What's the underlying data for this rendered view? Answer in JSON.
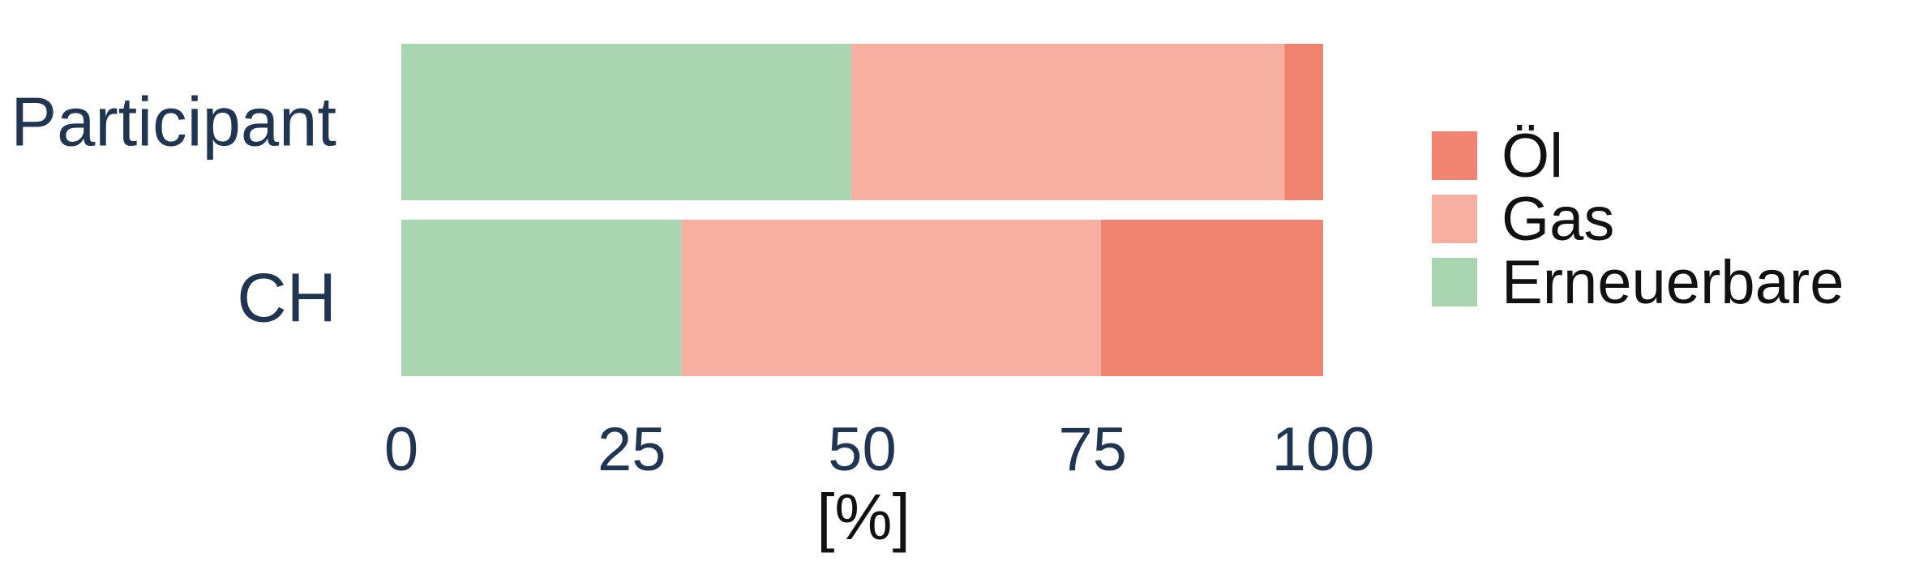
{
  "chart_data": {
    "type": "bar",
    "orientation": "horizontal",
    "stacked": true,
    "categories": [
      "Participant",
      "CH"
    ],
    "series": [
      {
        "name": "Erneuerbare",
        "color": "#a9d5b0",
        "values": [
          48.8,
          30.4
        ]
      },
      {
        "name": "Gas",
        "color": "#f6afa0",
        "values": [
          47.0,
          45.5
        ]
      },
      {
        "name": "Öl",
        "color": "#f08470",
        "values": [
          4.2,
          24.1
        ]
      }
    ],
    "legend_order": [
      "Öl",
      "Gas",
      "Erneuerbare"
    ],
    "xlabel": "[%]",
    "ylabel": "",
    "xlim": [
      0,
      100
    ],
    "xticks": [
      "0",
      "25",
      "50",
      "75",
      "100"
    ],
    "grid": false,
    "legend_position": "right"
  }
}
